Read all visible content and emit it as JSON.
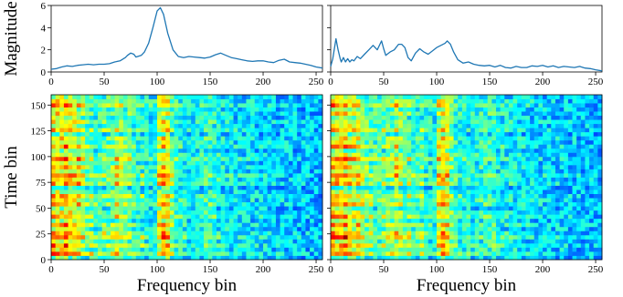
{
  "chart_data": [
    {
      "type": "line",
      "panel": "top-left",
      "xlabel": "",
      "ylabel": "Magnitude",
      "xlim": [
        0,
        256
      ],
      "ylim": [
        0,
        6
      ],
      "xticks": [
        0,
        50,
        100,
        150,
        200,
        250
      ],
      "yticks": [
        0,
        2,
        4,
        6
      ],
      "color": "#1f77b4",
      "series": [
        {
          "x": [
            0,
            5,
            10,
            15,
            20,
            25,
            30,
            35,
            40,
            45,
            50,
            55,
            60,
            65,
            70,
            72,
            75,
            78,
            80,
            85,
            88,
            92,
            96,
            100,
            103,
            106,
            110,
            115,
            120,
            125,
            130,
            135,
            140,
            145,
            150,
            155,
            160,
            165,
            170,
            175,
            180,
            185,
            190,
            195,
            200,
            205,
            210,
            215,
            220,
            225,
            230,
            235,
            240,
            245,
            250,
            256
          ],
          "y": [
            0.25,
            0.3,
            0.45,
            0.55,
            0.5,
            0.6,
            0.65,
            0.7,
            0.65,
            0.7,
            0.7,
            0.75,
            0.9,
            1.0,
            1.3,
            1.5,
            1.7,
            1.6,
            1.35,
            1.5,
            1.8,
            2.6,
            4.0,
            5.5,
            5.8,
            5.2,
            3.5,
            2.0,
            1.4,
            1.3,
            1.4,
            1.35,
            1.3,
            1.25,
            1.35,
            1.55,
            1.7,
            1.5,
            1.3,
            1.2,
            1.1,
            1.0,
            0.95,
            1.0,
            1.0,
            0.9,
            0.85,
            1.05,
            1.15,
            0.9,
            0.85,
            0.8,
            0.7,
            0.6,
            0.45,
            0.35
          ]
        }
      ]
    },
    {
      "type": "line",
      "panel": "top-right",
      "xlabel": "",
      "ylabel": "",
      "xlim": [
        0,
        256
      ],
      "ylim": [
        0,
        6
      ],
      "xticks": [
        0,
        50,
        100,
        150,
        200,
        250
      ],
      "yticks": [
        0,
        2,
        4,
        6
      ],
      "color": "#1f77b4",
      "series": [
        {
          "x": [
            0,
            2,
            5,
            7,
            9,
            10,
            12,
            14,
            16,
            18,
            20,
            22,
            25,
            28,
            32,
            36,
            40,
            44,
            48,
            50,
            52,
            56,
            60,
            64,
            67,
            70,
            73,
            76,
            80,
            84,
            88,
            92,
            96,
            100,
            104,
            108,
            110,
            113,
            116,
            120,
            125,
            130,
            135,
            140,
            145,
            150,
            155,
            160,
            165,
            170,
            175,
            180,
            185,
            190,
            195,
            200,
            205,
            210,
            215,
            220,
            225,
            230,
            235,
            240,
            245,
            250,
            256
          ],
          "y": [
            0.5,
            1.2,
            3.0,
            2.0,
            1.2,
            0.9,
            1.3,
            0.9,
            1.2,
            0.9,
            1.1,
            1.0,
            1.4,
            1.2,
            1.6,
            2.0,
            2.4,
            2.0,
            2.8,
            2.1,
            1.5,
            1.8,
            2.0,
            2.5,
            2.5,
            2.2,
            1.3,
            1.0,
            1.7,
            2.1,
            1.8,
            1.6,
            1.9,
            2.2,
            2.4,
            2.6,
            2.8,
            2.5,
            1.8,
            1.1,
            0.8,
            0.9,
            0.7,
            0.6,
            0.55,
            0.6,
            0.45,
            0.6,
            0.4,
            0.35,
            0.5,
            0.4,
            0.4,
            0.55,
            0.5,
            0.6,
            0.45,
            0.55,
            0.4,
            0.5,
            0.45,
            0.4,
            0.5,
            0.35,
            0.3,
            0.2,
            0.1
          ]
        }
      ]
    },
    {
      "type": "heatmap",
      "panel": "bottom-left",
      "xlabel": "Frequency bin",
      "ylabel": "Time bin",
      "xlim": [
        0,
        256
      ],
      "ylim": [
        0,
        160
      ],
      "xticks": [
        0,
        50,
        100,
        150,
        200,
        250
      ],
      "yticks": [
        0,
        25,
        50,
        75,
        100,
        125,
        150
      ],
      "colormap": "jet",
      "grid": {
        "cols": 64,
        "rows": 40,
        "seed": 7
      },
      "row_energy": [
        0.15,
        0.7,
        0.4,
        0.65,
        0.35,
        0.75,
        0.6,
        0.3,
        0.55,
        0.25,
        0.6,
        0.45,
        0.2,
        0.6,
        0.5,
        0.55,
        0.3,
        0.1,
        0.6,
        0.5,
        0.7,
        0.4,
        0.55,
        0.35,
        0.65,
        0.45,
        0.2,
        0.6,
        0.4,
        0.5,
        0.15,
        0.55,
        0.35,
        0.45,
        0.25,
        0.5,
        0.3,
        0.6,
        0.45,
        0.3
      ],
      "freq_profile": [
        0.9,
        0.95,
        1.0,
        0.95,
        0.9,
        0.85,
        0.8,
        0.7,
        0.55,
        0.5,
        0.45,
        0.45,
        0.5,
        0.55,
        0.6,
        0.7,
        0.65,
        0.55,
        0.5,
        0.45,
        0.4,
        0.38,
        0.35,
        0.32,
        0.3,
        0.85,
        1.0,
        0.9,
        0.6,
        0.4,
        0.35,
        0.33,
        0.32,
        0.3,
        0.3,
        0.35,
        0.4,
        0.4,
        0.38,
        0.3,
        0.28,
        0.26,
        0.25,
        0.24,
        0.22,
        0.2,
        0.2,
        0.2,
        0.18,
        0.18,
        0.17,
        0.16,
        0.15,
        0.15,
        0.14,
        0.13,
        0.12,
        0.12,
        0.1,
        0.1,
        0.1,
        0.08,
        0.08,
        0.05
      ]
    },
    {
      "type": "heatmap",
      "panel": "bottom-right",
      "xlabel": "Frequency bin",
      "ylabel": "",
      "xlim": [
        0,
        256
      ],
      "ylim": [
        0,
        160
      ],
      "xticks": [
        0,
        50,
        100,
        150,
        200,
        250
      ],
      "yticks": [
        0,
        25,
        50,
        75,
        100,
        125,
        150
      ],
      "colormap": "jet",
      "grid": {
        "cols": 64,
        "rows": 40,
        "seed": 11
      },
      "row_energy": [
        0.15,
        0.7,
        0.4,
        0.65,
        0.35,
        0.75,
        0.6,
        0.3,
        0.55,
        0.25,
        0.6,
        0.45,
        0.2,
        0.6,
        0.5,
        0.55,
        0.3,
        0.1,
        0.6,
        0.5,
        0.7,
        0.4,
        0.55,
        0.35,
        0.65,
        0.45,
        0.2,
        0.6,
        0.4,
        0.5,
        0.15,
        0.55,
        0.35,
        0.45,
        0.25,
        0.5,
        0.3,
        0.6,
        0.45,
        0.3
      ],
      "freq_profile": [
        0.9,
        0.95,
        1.0,
        0.95,
        0.9,
        0.85,
        0.8,
        0.7,
        0.55,
        0.5,
        0.45,
        0.45,
        0.5,
        0.55,
        0.6,
        0.7,
        0.65,
        0.55,
        0.5,
        0.45,
        0.4,
        0.38,
        0.35,
        0.32,
        0.3,
        0.85,
        1.0,
        0.9,
        0.6,
        0.4,
        0.35,
        0.33,
        0.32,
        0.3,
        0.3,
        0.35,
        0.4,
        0.4,
        0.38,
        0.3,
        0.28,
        0.26,
        0.25,
        0.24,
        0.22,
        0.2,
        0.2,
        0.2,
        0.18,
        0.18,
        0.17,
        0.16,
        0.15,
        0.15,
        0.14,
        0.13,
        0.12,
        0.12,
        0.1,
        0.1,
        0.1,
        0.08,
        0.08,
        0.05
      ]
    }
  ]
}
